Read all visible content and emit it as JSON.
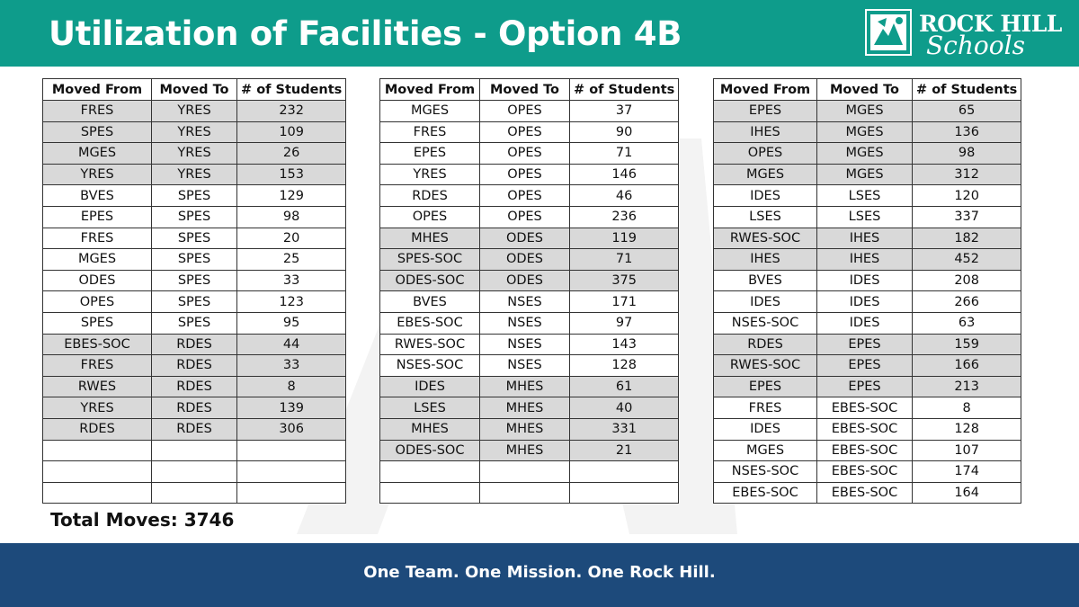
{
  "header": {
    "title": "Utilization of Facilities - Option 4B",
    "logo_rock": "ROCK HILL",
    "logo_schools": "Schools",
    "colors": {
      "header_bg": "#0e9c8b",
      "footer_bg": "#1d4a7b",
      "shade": "#d9d9d9"
    }
  },
  "columns": [
    "Moved From",
    "Moved To",
    "# of Students"
  ],
  "tables": [
    {
      "rows": [
        {
          "from": "FRES",
          "to": "YRES",
          "count": "232",
          "shade": true
        },
        {
          "from": "SPES",
          "to": "YRES",
          "count": "109",
          "shade": true
        },
        {
          "from": "MGES",
          "to": "YRES",
          "count": "26",
          "shade": true
        },
        {
          "from": "YRES",
          "to": "YRES",
          "count": "153",
          "shade": true
        },
        {
          "from": "BVES",
          "to": "SPES",
          "count": "129",
          "shade": false
        },
        {
          "from": "EPES",
          "to": "SPES",
          "count": "98",
          "shade": false
        },
        {
          "from": "FRES",
          "to": "SPES",
          "count": "20",
          "shade": false
        },
        {
          "from": "MGES",
          "to": "SPES",
          "count": "25",
          "shade": false
        },
        {
          "from": "ODES",
          "to": "SPES",
          "count": "33",
          "shade": false
        },
        {
          "from": "OPES",
          "to": "SPES",
          "count": "123",
          "shade": false
        },
        {
          "from": "SPES",
          "to": "SPES",
          "count": "95",
          "shade": false
        },
        {
          "from": "EBES-SOC",
          "to": "RDES",
          "count": "44",
          "shade": true
        },
        {
          "from": "FRES",
          "to": "RDES",
          "count": "33",
          "shade": true
        },
        {
          "from": "RWES",
          "to": "RDES",
          "count": "8",
          "shade": true
        },
        {
          "from": "YRES",
          "to": "RDES",
          "count": "139",
          "shade": true
        },
        {
          "from": "RDES",
          "to": "RDES",
          "count": "306",
          "shade": true
        },
        {
          "from": "",
          "to": "",
          "count": "",
          "shade": false
        },
        {
          "from": "",
          "to": "",
          "count": "",
          "shade": false
        },
        {
          "from": "",
          "to": "",
          "count": "",
          "shade": false
        }
      ]
    },
    {
      "rows": [
        {
          "from": "MGES",
          "to": "OPES",
          "count": "37",
          "shade": false
        },
        {
          "from": "FRES",
          "to": "OPES",
          "count": "90",
          "shade": false
        },
        {
          "from": "EPES",
          "to": "OPES",
          "count": "71",
          "shade": false
        },
        {
          "from": "YRES",
          "to": "OPES",
          "count": "146",
          "shade": false
        },
        {
          "from": "RDES",
          "to": "OPES",
          "count": "46",
          "shade": false
        },
        {
          "from": "OPES",
          "to": "OPES",
          "count": "236",
          "shade": false
        },
        {
          "from": "MHES",
          "to": "ODES",
          "count": "119",
          "shade": true
        },
        {
          "from": "SPES-SOC",
          "to": "ODES",
          "count": "71",
          "shade": true
        },
        {
          "from": "ODES-SOC",
          "to": "ODES",
          "count": "375",
          "shade": true
        },
        {
          "from": "BVES",
          "to": "NSES",
          "count": "171",
          "shade": false
        },
        {
          "from": "EBES-SOC",
          "to": "NSES",
          "count": "97",
          "shade": false
        },
        {
          "from": "RWES-SOC",
          "to": "NSES",
          "count": "143",
          "shade": false
        },
        {
          "from": "NSES-SOC",
          "to": "NSES",
          "count": "128",
          "shade": false
        },
        {
          "from": "IDES",
          "to": "MHES",
          "count": "61",
          "shade": true
        },
        {
          "from": "LSES",
          "to": "MHES",
          "count": "40",
          "shade": true
        },
        {
          "from": "MHES",
          "to": "MHES",
          "count": "331",
          "shade": true
        },
        {
          "from": "ODES-SOC",
          "to": "MHES",
          "count": "21",
          "shade": true
        },
        {
          "from": "",
          "to": "",
          "count": "",
          "shade": false
        },
        {
          "from": "",
          "to": "",
          "count": "",
          "shade": false
        }
      ]
    },
    {
      "rows": [
        {
          "from": "EPES",
          "to": "MGES",
          "count": "65",
          "shade": true
        },
        {
          "from": "IHES",
          "to": "MGES",
          "count": "136",
          "shade": true
        },
        {
          "from": "OPES",
          "to": "MGES",
          "count": "98",
          "shade": true
        },
        {
          "from": "MGES",
          "to": "MGES",
          "count": "312",
          "shade": true
        },
        {
          "from": "IDES",
          "to": "LSES",
          "count": "120",
          "shade": false
        },
        {
          "from": "LSES",
          "to": "LSES",
          "count": "337",
          "shade": false
        },
        {
          "from": "RWES-SOC",
          "to": "IHES",
          "count": "182",
          "shade": true
        },
        {
          "from": "IHES",
          "to": "IHES",
          "count": "452",
          "shade": true
        },
        {
          "from": "BVES",
          "to": "IDES",
          "count": "208",
          "shade": false
        },
        {
          "from": "IDES",
          "to": "IDES",
          "count": "266",
          "shade": false
        },
        {
          "from": "NSES-SOC",
          "to": "IDES",
          "count": "63",
          "shade": false
        },
        {
          "from": "RDES",
          "to": "EPES",
          "count": "159",
          "shade": true
        },
        {
          "from": "RWES-SOC",
          "to": "EPES",
          "count": "166",
          "shade": true
        },
        {
          "from": "EPES",
          "to": "EPES",
          "count": "213",
          "shade": true
        },
        {
          "from": "FRES",
          "to": "EBES-SOC",
          "count": "8",
          "shade": false
        },
        {
          "from": "IDES",
          "to": "EBES-SOC",
          "count": "128",
          "shade": false
        },
        {
          "from": "MGES",
          "to": "EBES-SOC",
          "count": "107",
          "shade": false
        },
        {
          "from": "NSES-SOC",
          "to": "EBES-SOC",
          "count": "174",
          "shade": false
        },
        {
          "from": "EBES-SOC",
          "to": "EBES-SOC",
          "count": "164",
          "shade": false
        }
      ]
    }
  ],
  "total": "Total Moves: 3746",
  "footer": {
    "slogan": "One Team. One Mission. One Rock Hill."
  }
}
